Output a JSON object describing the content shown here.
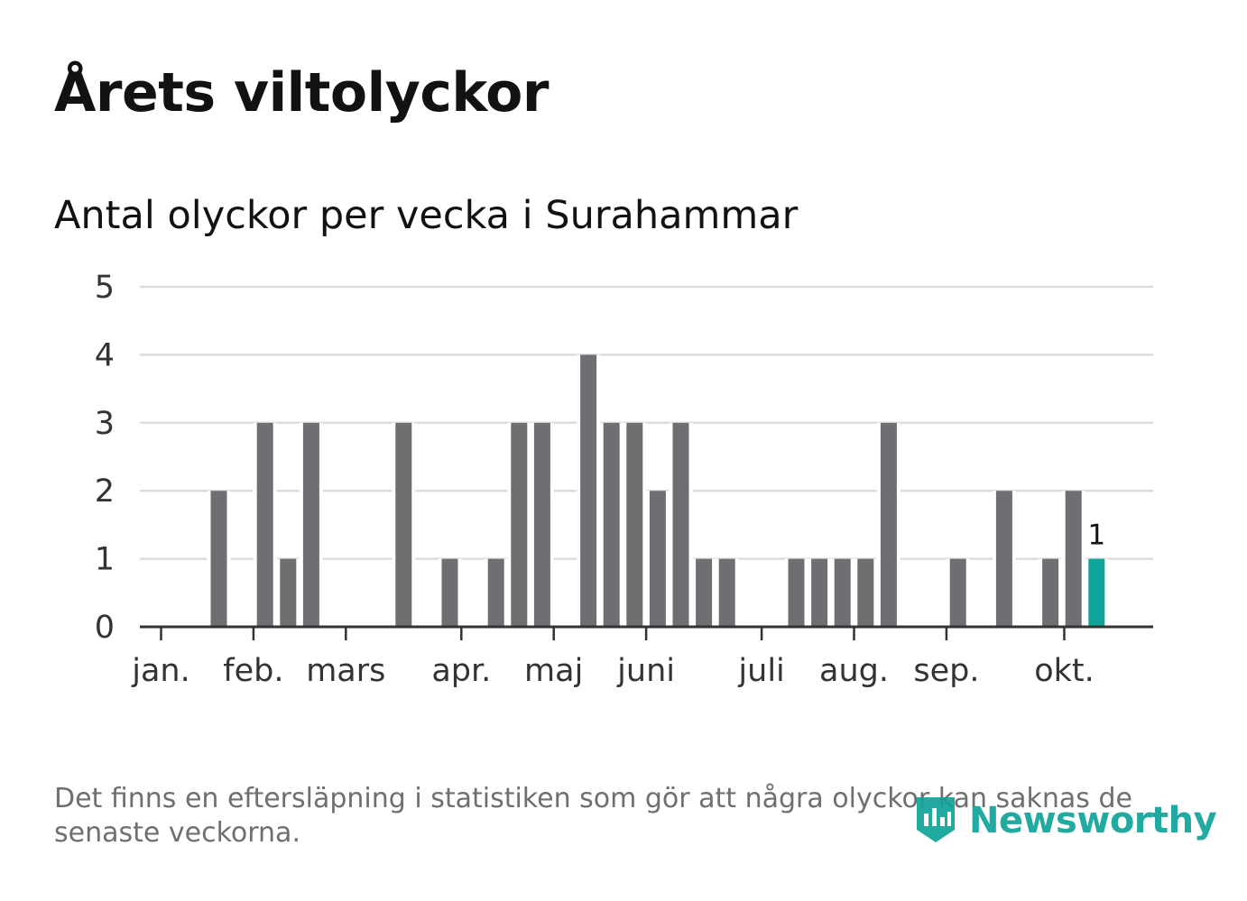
{
  "title": "Årets viltolyckor",
  "subtitle": "Antal olyckor per vecka i Surahammar",
  "footnote": "Det finns en eftersläpning i statistiken som gör att några olyckor kan saknas de senaste veckorna.",
  "brand": {
    "name": "Newsworthy",
    "color": "#10a39a"
  },
  "colors": {
    "bar": "#6f6e72",
    "highlight": "#10a39a",
    "grid": "#dcdcdc",
    "axis": "#333333"
  },
  "chart_data": {
    "type": "bar",
    "title": "Antal olyckor per vecka i Surahammar",
    "xlabel": "",
    "ylabel": "",
    "ylim": [
      0,
      5
    ],
    "yticks": [
      "0",
      "1",
      "2",
      "3",
      "4",
      "5"
    ],
    "grid": true,
    "weeks": [
      1,
      2,
      3,
      4,
      5,
      6,
      7,
      8,
      9,
      10,
      11,
      12,
      13,
      14,
      15,
      16,
      17,
      18,
      19,
      20,
      21,
      22,
      23,
      24,
      25,
      26,
      27,
      28,
      29,
      30,
      31,
      32,
      33,
      34,
      35,
      36,
      37,
      38,
      39,
      40,
      41,
      42
    ],
    "values": [
      0,
      0,
      0,
      2,
      0,
      3,
      1,
      3,
      0,
      0,
      0,
      3,
      0,
      1,
      0,
      1,
      3,
      3,
      0,
      4,
      3,
      3,
      2,
      3,
      1,
      1,
      0,
      0,
      1,
      1,
      1,
      1,
      3,
      0,
      0,
      1,
      0,
      2,
      0,
      1,
      2,
      1
    ],
    "highlight_last": true,
    "last_value_label": "1",
    "month_labels": [
      {
        "label": "jan.",
        "week": 1.5
      },
      {
        "label": "feb.",
        "week": 5.5
      },
      {
        "label": "mars",
        "week": 9.5
      },
      {
        "label": "apr.",
        "week": 14.5
      },
      {
        "label": "maj",
        "week": 18.5
      },
      {
        "label": "juni",
        "week": 22.5
      },
      {
        "label": "juli",
        "week": 27.5
      },
      {
        "label": "aug.",
        "week": 31.5
      },
      {
        "label": "sep.",
        "week": 35.5
      },
      {
        "label": "okt.",
        "week": 40.6
      }
    ]
  }
}
